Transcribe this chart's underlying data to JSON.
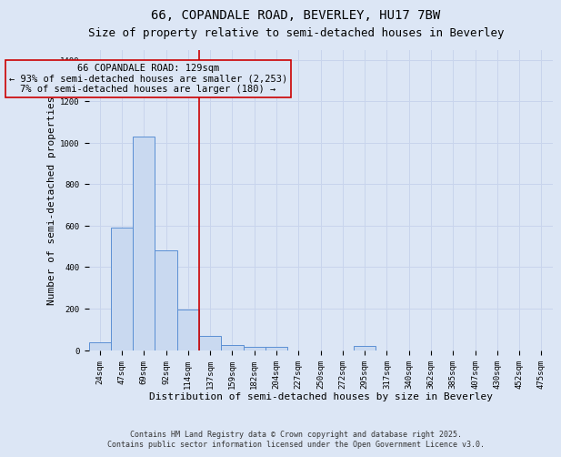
{
  "title1": "66, COPANDALE ROAD, BEVERLEY, HU17 7BW",
  "title2": "Size of property relative to semi-detached houses in Beverley",
  "xlabel": "Distribution of semi-detached houses by size in Beverley",
  "ylabel": "Number of semi-detached properties",
  "bin_labels": [
    "24sqm",
    "47sqm",
    "69sqm",
    "92sqm",
    "114sqm",
    "137sqm",
    "159sqm",
    "182sqm",
    "204sqm",
    "227sqm",
    "250sqm",
    "272sqm",
    "295sqm",
    "317sqm",
    "340sqm",
    "362sqm",
    "385sqm",
    "407sqm",
    "430sqm",
    "452sqm",
    "475sqm"
  ],
  "bin_values": [
    38,
    590,
    1030,
    480,
    195,
    70,
    22,
    15,
    15,
    0,
    0,
    0,
    18,
    0,
    0,
    0,
    0,
    0,
    0,
    0,
    0
  ],
  "bar_color": "#c9d9f0",
  "bar_edge_color": "#5b8fd4",
  "grid_color": "#c8d4ec",
  "background_color": "#dce6f5",
  "subject_line_color": "#cc0000",
  "annotation_box_color": "#cc0000",
  "subject_label": "66 COPANDALE ROAD: 129sqm",
  "annotation_line1": "← 93% of semi-detached houses are smaller (2,253)",
  "annotation_line2": "7% of semi-detached houses are larger (180) →",
  "ylim": [
    0,
    1450
  ],
  "yticks": [
    0,
    200,
    400,
    600,
    800,
    1000,
    1200,
    1400
  ],
  "footer1": "Contains HM Land Registry data © Crown copyright and database right 2025.",
  "footer2": "Contains public sector information licensed under the Open Government Licence v3.0.",
  "title1_fontsize": 10,
  "title2_fontsize": 9,
  "xlabel_fontsize": 8,
  "ylabel_fontsize": 8,
  "tick_fontsize": 6.5,
  "annotation_fontsize": 7.5,
  "footer_fontsize": 6
}
